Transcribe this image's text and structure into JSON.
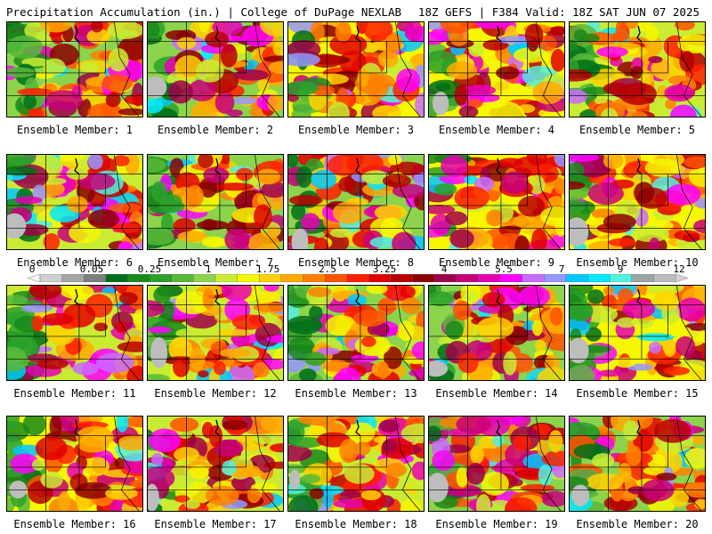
{
  "header": {
    "left": "Precipitation Accumulation (in.) | College of DuPage NEXLAB",
    "right": "18Z GEFS | F384 Valid: 18Z SAT JUN 07 2025"
  },
  "legend": {
    "labels": [
      "0",
      "0.05",
      "0.25",
      "1",
      "1.75",
      "2.5",
      "3.25",
      "4",
      "5.5",
      "7",
      "9",
      "12"
    ],
    "colors": [
      "#f4f4f4",
      "#cfcfcf",
      "#a6a6a6",
      "#7e7e7e",
      "#006e1a",
      "#1a8a1a",
      "#2ba12b",
      "#57b83a",
      "#8cd44c",
      "#c9ec33",
      "#f7f700",
      "#ffd200",
      "#ffaa00",
      "#ff8000",
      "#ff5200",
      "#ff1e00",
      "#e00000",
      "#b80000",
      "#8c0000",
      "#a0004a",
      "#c8007a",
      "#e600b4",
      "#ff00ff",
      "#c86bff",
      "#9696ff",
      "#00c8ff",
      "#00eaff",
      "#52f0e0",
      "#9aa6a6",
      "#bdbdbd",
      "#d2d2d2"
    ]
  },
  "panels": [
    {
      "caption": "Ensemble Member: 1"
    },
    {
      "caption": "Ensemble Member: 2"
    },
    {
      "caption": "Ensemble Member: 3"
    },
    {
      "caption": "Ensemble Member: 4"
    },
    {
      "caption": "Ensemble Member: 5"
    },
    {
      "caption": "Ensemble Member: 6"
    },
    {
      "caption": "Ensemble Member: 7"
    },
    {
      "caption": "Ensemble Member: 8"
    },
    {
      "caption": "Ensemble Member: 9"
    },
    {
      "caption": "Ensemble Member: 10"
    },
    {
      "caption": "Ensemble Member: 11"
    },
    {
      "caption": "Ensemble Member: 12"
    },
    {
      "caption": "Ensemble Member: 13"
    },
    {
      "caption": "Ensemble Member: 14"
    },
    {
      "caption": "Ensemble Member: 15"
    },
    {
      "caption": "Ensemble Member: 16"
    },
    {
      "caption": "Ensemble Member: 17"
    },
    {
      "caption": "Ensemble Member: 18"
    },
    {
      "caption": "Ensemble Member: 19"
    },
    {
      "caption": "Ensemble Member: 20"
    }
  ]
}
